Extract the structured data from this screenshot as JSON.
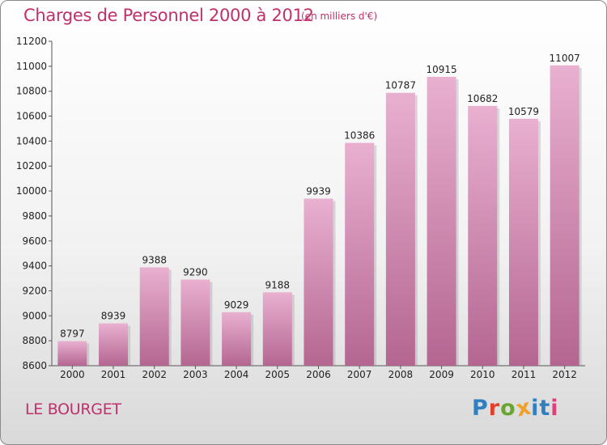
{
  "header": {
    "title": "Charges de Personnel 2000 à 2012",
    "unit": "(en milliers d'€)"
  },
  "footer": {
    "city": "LE BOURGET",
    "logo": [
      "P",
      "r",
      "o",
      "x",
      "i",
      "t",
      "i"
    ],
    "logo_colors": [
      "#2f7fc1",
      "#e0412a",
      "#6aa532",
      "#f0a12a",
      "#2f7fc1",
      "#2f7fc1",
      "#e03f7a"
    ]
  },
  "colors": {
    "title": "#c0306a",
    "bar_top": "#e9b0d0",
    "bar_bottom": "#b46691"
  },
  "chart_data": {
    "type": "bar",
    "categories": [
      "2000",
      "2001",
      "2002",
      "2003",
      "2004",
      "2005",
      "2006",
      "2007",
      "2008",
      "2009",
      "2010",
      "2011",
      "2012"
    ],
    "values": [
      8797,
      8939,
      9388,
      9290,
      9029,
      9188,
      9939,
      10386,
      10787,
      10915,
      10682,
      10579,
      11007
    ],
    "ylim": [
      8600,
      11200
    ],
    "yticks": [
      8600,
      8800,
      9000,
      9200,
      9400,
      9600,
      9800,
      10000,
      10200,
      10400,
      10600,
      10800,
      11000,
      11200
    ],
    "grid": false,
    "legend": "none"
  }
}
